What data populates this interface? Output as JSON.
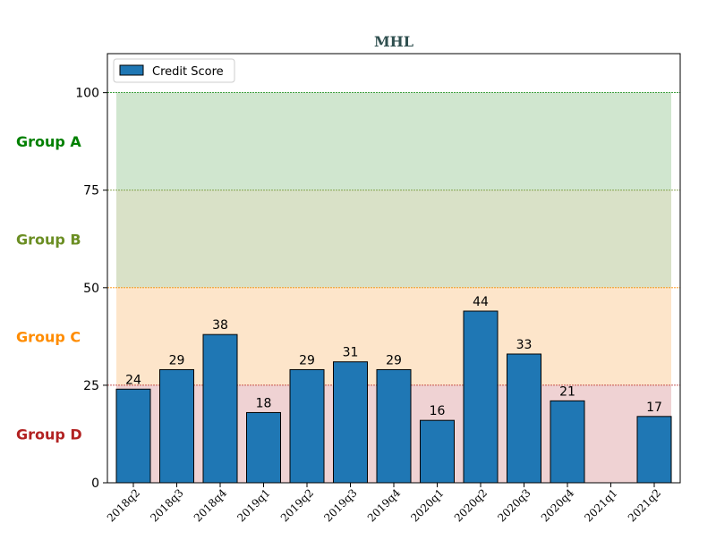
{
  "chart_data": {
    "type": "bar",
    "title": "MHL",
    "title_color": "#2f4f4f",
    "categories": [
      "2018q2",
      "2018q3",
      "2018q4",
      "2019q1",
      "2019q2",
      "2019q3",
      "2019q4",
      "2020q1",
      "2020q2",
      "2020q3",
      "2020q4",
      "2021q1",
      "2021q2"
    ],
    "series": [
      {
        "name": "Credit Score",
        "color": "#1f77b4",
        "values": [
          24,
          29,
          38,
          18,
          29,
          31,
          29,
          16,
          44,
          33,
          21,
          null,
          17
        ]
      }
    ],
    "ylim": [
      0,
      110
    ],
    "yticks": [
      0,
      25,
      50,
      75,
      100
    ],
    "legend_position": "top-left",
    "bands": [
      {
        "label": "Group A",
        "from": 75,
        "to": 100,
        "fill": "#d0e6cf",
        "label_color": "#008000",
        "line_color": "#008000"
      },
      {
        "label": "Group B",
        "from": 50,
        "to": 75,
        "fill": "#d9e1c7",
        "label_color": "#6b8e23",
        "line_color": "#6b8e23"
      },
      {
        "label": "Group C",
        "from": 25,
        "to": 50,
        "fill": "#fde5ca",
        "label_color": "#ff8c00",
        "line_color": "#ff8c00"
      },
      {
        "label": "Group D",
        "from": 0,
        "to": 25,
        "fill": "#efd2d3",
        "label_color": "#b22222",
        "line_color": "#b22222"
      }
    ]
  }
}
